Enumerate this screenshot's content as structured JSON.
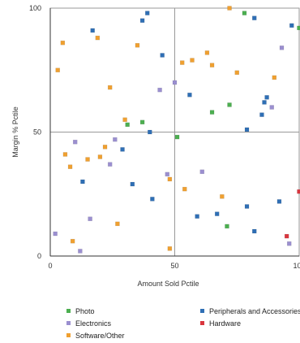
{
  "chart_data": {
    "type": "scatter",
    "title": "",
    "xlabel": "Amount Sold Pctile",
    "ylabel": "Margin % Pctile",
    "xlim": [
      0,
      100
    ],
    "ylim": [
      0,
      100
    ],
    "x_ticks": [
      "0",
      "50",
      "100"
    ],
    "y_ticks": [
      "0",
      "50",
      "100"
    ],
    "grid": true,
    "legend_position": "bottom",
    "series": [
      {
        "name": "Photo",
        "color": "#4caf50",
        "points": [
          [
            31,
            53
          ],
          [
            37,
            54
          ],
          [
            51,
            48
          ],
          [
            65,
            58
          ],
          [
            72,
            61
          ],
          [
            78,
            98
          ],
          [
            71,
            12
          ],
          [
            100,
            92
          ]
        ]
      },
      {
        "name": "Peripherals and Accessories",
        "color": "#2f6fb5",
        "points": [
          [
            17,
            91
          ],
          [
            39,
            98
          ],
          [
            37,
            95
          ],
          [
            45,
            81
          ],
          [
            56,
            65
          ],
          [
            40,
            50
          ],
          [
            29,
            43
          ],
          [
            33,
            29
          ],
          [
            13,
            30
          ],
          [
            41,
            23
          ],
          [
            59,
            16
          ],
          [
            67,
            17
          ],
          [
            79,
            51
          ],
          [
            85,
            57
          ],
          [
            86,
            62
          ],
          [
            87,
            64
          ],
          [
            82,
            96
          ],
          [
            97,
            93
          ],
          [
            79,
            20
          ],
          [
            82,
            10
          ],
          [
            92,
            22
          ]
        ]
      },
      {
        "name": "Electronics",
        "color": "#9b8fd0",
        "points": [
          [
            10,
            46
          ],
          [
            26,
            47
          ],
          [
            24,
            37
          ],
          [
            44,
            67
          ],
          [
            50,
            70
          ],
          [
            47,
            33
          ],
          [
            61,
            34
          ],
          [
            89,
            60
          ],
          [
            93,
            84
          ],
          [
            16,
            15
          ],
          [
            12,
            2
          ],
          [
            2,
            9
          ],
          [
            96,
            5
          ]
        ]
      },
      {
        "name": "Hardware",
        "color": "#d9363e",
        "points": [
          [
            100,
            26
          ],
          [
            95,
            8
          ]
        ]
      },
      {
        "name": "Software/Other",
        "color": "#f0a030",
        "points": [
          [
            72,
            100
          ],
          [
            5,
            86
          ],
          [
            19,
            88
          ],
          [
            35,
            85
          ],
          [
            3,
            75
          ],
          [
            24,
            68
          ],
          [
            53,
            78
          ],
          [
            57,
            79
          ],
          [
            63,
            82
          ],
          [
            65,
            77
          ],
          [
            75,
            74
          ],
          [
            90,
            72
          ],
          [
            30,
            55
          ],
          [
            6,
            41
          ],
          [
            8,
            36
          ],
          [
            15,
            39
          ],
          [
            20,
            40
          ],
          [
            22,
            44
          ],
          [
            48,
            31
          ],
          [
            54,
            27
          ],
          [
            69,
            24
          ],
          [
            27,
            13
          ],
          [
            9,
            6
          ],
          [
            48,
            3
          ]
        ]
      }
    ],
    "legend_columns": [
      [
        "Photo",
        "Electronics",
        "Software/Other"
      ],
      [
        "Peripherals and Accessories",
        "Hardware"
      ]
    ]
  }
}
